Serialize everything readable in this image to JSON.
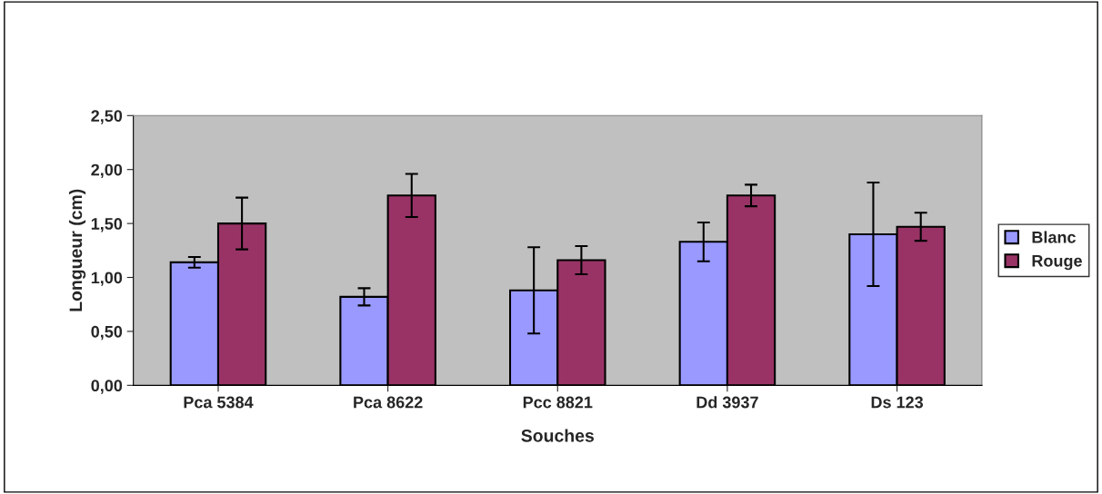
{
  "chart_data": {
    "type": "bar",
    "xlabel": "Souches",
    "ylabel": "Longueur (cm)",
    "categories": [
      "Pca 5384",
      "Pca 8622",
      "Pcc 8821",
      "Dd 3937",
      "Ds 123"
    ],
    "series": [
      {
        "name": "Blanc",
        "color": "#9999ff",
        "values": [
          1.14,
          0.82,
          0.88,
          1.33,
          1.4
        ],
        "errors": [
          0.05,
          0.08,
          0.4,
          0.18,
          0.48
        ]
      },
      {
        "name": "Rouge",
        "color": "#993366",
        "values": [
          1.5,
          1.76,
          1.16,
          1.76,
          1.47
        ],
        "errors": [
          0.24,
          0.2,
          0.13,
          0.1,
          0.13
        ]
      }
    ],
    "ylim": [
      0,
      2.5
    ],
    "yticks": [
      {
        "value": 0,
        "label": "0,00"
      },
      {
        "value": 0.5,
        "label": "0,50"
      },
      {
        "value": 1,
        "label": "1,00"
      },
      {
        "value": 1.5,
        "label": "1,50"
      },
      {
        "value": 2,
        "label": "2,00"
      },
      {
        "value": 2.5,
        "label": "2,50"
      }
    ],
    "grid": false,
    "legend": "right"
  }
}
